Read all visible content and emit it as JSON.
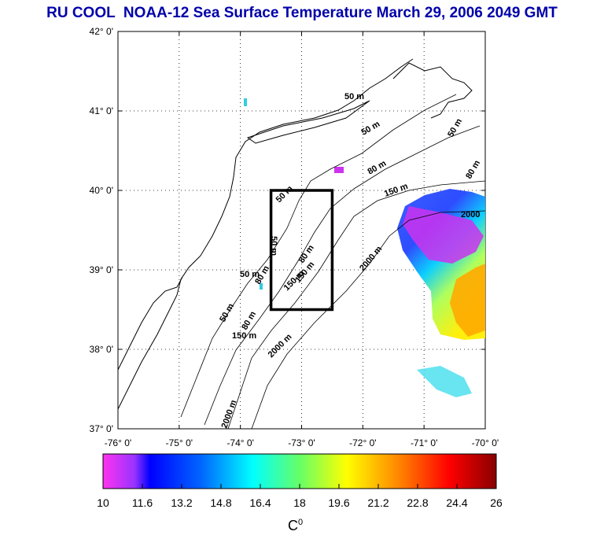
{
  "title": "RU COOL  NOAA-12 Sea Surface Temperature March 29, 2006 2049 GMT",
  "map": {
    "lat_labels": [
      "42° 0'",
      "41° 0'",
      "40° 0'",
      "39° 0'",
      "38° 0'",
      "37° 0'"
    ],
    "lon_labels": [
      "-76° 0'",
      "-75° 0'",
      "-74° 0'",
      "-73° 0'",
      "-72° 0'",
      "-71° 0'",
      "-70° 0'"
    ],
    "lat_range": [
      37,
      42
    ],
    "lon_range": [
      -76,
      -70
    ],
    "box": {
      "lon": [
        -73.5,
        -72.5
      ],
      "lat": [
        38.5,
        40.0
      ]
    },
    "contour_labels": [
      "50 m",
      "50 m",
      "50 m",
      "80 m",
      "80 m",
      "150 m",
      "2000",
      "50 m",
      "80 m",
      "150 m",
      "2000 m",
      "50 m",
      "50 m",
      "80 m",
      "150 m",
      "2000 m",
      "50 m",
      "80 m",
      "150 m",
      "2000 m"
    ]
  },
  "colorbar": {
    "ticks": [
      "10",
      "11.6",
      "13.2",
      "14.8",
      "16.4",
      "18",
      "19.6",
      "21.2",
      "22.8",
      "24.4",
      "26"
    ],
    "range": [
      10,
      26
    ],
    "unit": "C",
    "unit_sup": "0"
  },
  "colors": {
    "title": "#0000aa",
    "land": "#ffffff",
    "box": "#000000"
  }
}
